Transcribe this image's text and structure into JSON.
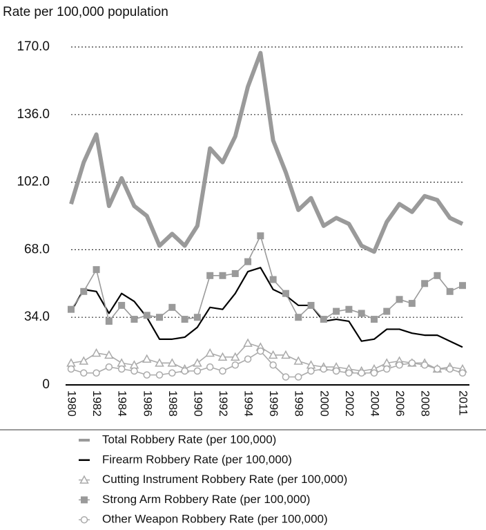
{
  "chart_data": {
    "type": "line",
    "y_label": "Rate per 100,000 population",
    "categories": [
      "1980",
      null,
      "1982",
      null,
      "1984",
      null,
      "1986",
      null,
      "1988",
      null,
      "1990",
      null,
      "1992",
      null,
      "1994",
      null,
      "1996",
      null,
      "1998",
      null,
      "2000",
      null,
      "2002",
      null,
      "2004",
      null,
      "2006",
      null,
      "2008",
      null,
      null,
      "2011"
    ],
    "ylim": [
      0,
      170
    ],
    "yticks": [
      0,
      {
        "value": 34,
        "label": "34.0"
      },
      {
        "value": 68,
        "label": "68.0"
      },
      {
        "value": 102,
        "label": "102.0"
      },
      {
        "value": 136,
        "label": "136.0"
      },
      {
        "value": 170,
        "label": "170.0"
      }
    ],
    "grid": true,
    "legend": "bottom",
    "series": [
      {
        "name": "Total Robbery Rate (per 100,000)",
        "color": "#9a9a9a",
        "values": [
          91,
          112,
          126,
          90,
          104,
          90,
          85,
          70,
          76,
          70,
          80,
          119,
          112,
          125,
          150,
          167,
          123,
          107,
          88,
          94,
          80,
          84,
          81,
          70,
          67,
          82,
          91,
          87,
          95,
          93,
          84,
          81
        ]
      },
      {
        "name": "Firearm Robbery Rate (per 100,000)",
        "color": "#000000",
        "values": [
          37,
          48,
          47,
          36,
          46,
          42,
          34,
          23,
          23,
          24,
          29,
          39,
          38,
          46,
          57,
          59,
          48,
          45,
          40,
          40,
          32,
          33,
          32,
          22,
          23,
          28,
          28,
          26,
          25,
          25,
          22,
          19
        ]
      },
      {
        "name": "Cutting Instrument Robbery Rate (per 100,000)",
        "color": "#aaaaaa",
        "marker": "triangle",
        "values": [
          11,
          12,
          16,
          15,
          11,
          10,
          13,
          11,
          11,
          8,
          11,
          16,
          14,
          14,
          21,
          19,
          15,
          15,
          12,
          10,
          9,
          9,
          8,
          7,
          8,
          11,
          12,
          11,
          11,
          8,
          9,
          8
        ]
      },
      {
        "name": "Strong Arm Robbery Rate (per 100,000)",
        "color": "#9a9a9a",
        "marker": "square",
        "values": [
          38,
          47,
          58,
          32,
          40,
          33,
          35,
          34,
          39,
          33,
          34,
          55,
          55,
          56,
          62,
          75,
          53,
          46,
          34,
          40,
          33,
          37,
          38,
          36,
          33,
          37,
          43,
          41,
          51,
          55,
          47,
          50
        ]
      },
      {
        "name": "Other Weapon Robbery Rate (per 100,000)",
        "color": "#aaaaaa",
        "marker": "circle",
        "values": [
          8,
          6,
          6,
          9,
          8,
          7,
          5,
          5,
          6,
          7,
          7,
          9,
          7,
          10,
          13,
          17,
          10,
          4,
          4,
          7,
          8,
          7,
          6,
          6,
          6,
          8,
          10,
          11,
          10,
          8,
          8,
          6
        ]
      }
    ]
  }
}
